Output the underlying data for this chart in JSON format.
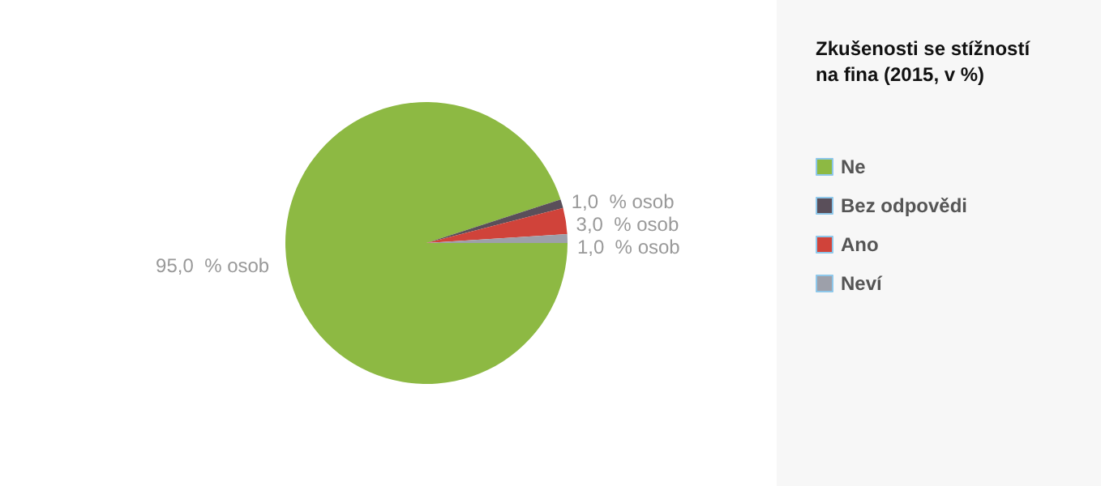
{
  "chart_data": {
    "type": "pie",
    "title": "Zkušenosti se stížností na fina (2015, v %)",
    "categories": [
      "Ne",
      "Bez odpovědi",
      "Ano",
      "Neví"
    ],
    "values": [
      95,
      1,
      3,
      1
    ],
    "colors": [
      "#8db943",
      "#5a4f5a",
      "#d0433a",
      "#9da0aa"
    ],
    "value_labels": [
      "95,0  % osob",
      "1,0  % osob",
      "3,0  % osob",
      "1,0  % osob"
    ],
    "legend": "right"
  }
}
